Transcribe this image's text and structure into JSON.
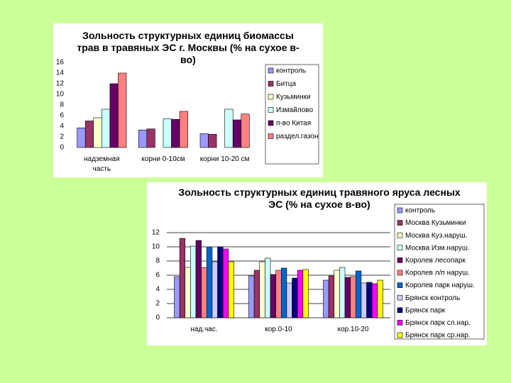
{
  "chart_data": [
    {
      "type": "bar",
      "title": "Зольность структурных единиц биомассы трав в травяных ЭС г. Москвы (% на сухое в-во)",
      "categories": [
        "надземная часть",
        "корни 0-10см",
        "корни 10-20 см"
      ],
      "series": [
        {
          "name": "контроль",
          "color": "#9999ff",
          "values": [
            3.7,
            3.3,
            2.6
          ]
        },
        {
          "name": "Битца",
          "color": "#993366",
          "values": [
            5,
            3.5,
            2.5
          ]
        },
        {
          "name": "Кузьминки",
          "color": "#ffffcc",
          "values": [
            5.6,
            null,
            null
          ]
        },
        {
          "name": "Измайлово",
          "color": "#ccffff",
          "values": [
            7.2,
            5.4,
            7.2
          ]
        },
        {
          "name": "п-во Китая",
          "color": "#660066",
          "values": [
            12,
            5.3,
            5.2
          ]
        },
        {
          "name": "раздел.газон",
          "color": "#ff8080",
          "values": [
            14,
            6.8,
            6.3
          ]
        }
      ],
      "ylim": [
        0,
        16
      ],
      "yticks": [
        0,
        2,
        4,
        6,
        8,
        10,
        12,
        14,
        16
      ],
      "grid": false,
      "legend": "right"
    },
    {
      "type": "bar",
      "title": "Зольность структурных единиц травяного яруса лесных ЭС (% на сухое в-во)",
      "categories": [
        "над.час.",
        "кор.0-10",
        "кор.10-20"
      ],
      "series": [
        {
          "name": "контроль",
          "color": "#9999ff",
          "values": [
            5.8,
            5.9,
            5.3
          ]
        },
        {
          "name": "Москва Кузьминки",
          "color": "#993366",
          "values": [
            11.2,
            6.7,
            5.9
          ]
        },
        {
          "name": "Москва Куз.наруш.",
          "color": "#ffffcc",
          "values": [
            7.1,
            7.9,
            6.7
          ]
        },
        {
          "name": "Москва Изм.наруш.",
          "color": "#ccffff",
          "values": [
            10.1,
            8.4,
            7.1
          ]
        },
        {
          "name": "Королев лесопарк",
          "color": "#660066",
          "values": [
            10.9,
            6.1,
            5.7
          ]
        },
        {
          "name": "Королев л/п наруш.",
          "color": "#ff8080",
          "values": [
            7.1,
            6.7,
            5.8
          ]
        },
        {
          "name": "Королев парк наруш.",
          "color": "#0066cc",
          "values": [
            9.9,
            7.0,
            6.6
          ]
        },
        {
          "name": "Брянск контроль",
          "color": "#ccccff",
          "values": [
            7.9,
            4.9,
            4.9
          ]
        },
        {
          "name": "Брянск парк",
          "color": "#000080",
          "values": [
            10.0,
            5.6,
            5.0
          ]
        },
        {
          "name": "Брянск парк сл.нар.",
          "color": "#ff00ff",
          "values": [
            9.7,
            6.7,
            4.8
          ]
        },
        {
          "name": "Брянск парк ср.нар.",
          "color": "#ffff00",
          "values": [
            7.9,
            6.8,
            5.3
          ]
        }
      ],
      "ylim": [
        0,
        12
      ],
      "yticks": [
        0,
        2,
        4,
        6,
        8,
        10,
        12
      ],
      "grid": true,
      "legend": "right"
    }
  ]
}
